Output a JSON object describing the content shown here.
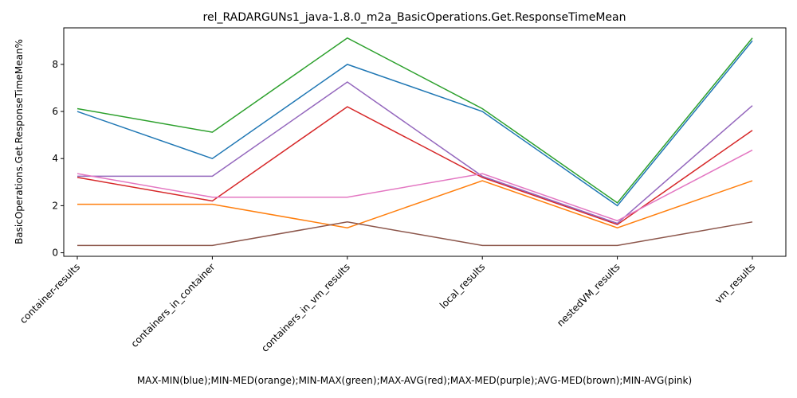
{
  "chart_data": {
    "type": "line",
    "title": "rel_RADARGUNs1_java-1.8.0_m2a_BasicOperations.Get.ResponseTimeMean",
    "xlabel": "MAX-MIN(blue);MIN-MED(orange);MIN-MAX(green);MAX-AVG(red);MAX-MED(purple);AVG-MED(brown);MIN-AVG(pink)",
    "ylabel": "BasicOperations.Get.ResponseTimeMean%",
    "categories": [
      "container-results",
      "containers_in_container",
      "containers_in_vm_results",
      "local_results",
      "nestedVM_results",
      "vm_results"
    ],
    "ylim": [
      -0.15,
      9.55
    ],
    "yticks": [
      0,
      2,
      4,
      6,
      8
    ],
    "grid": false,
    "series": [
      {
        "color": "#1f77b4",
        "values": [
          6.0,
          4.0,
          8.0,
          6.0,
          2.0,
          9.0
        ]
      },
      {
        "color": "#ff7f0e",
        "values": [
          2.06,
          2.06,
          1.06,
          3.06,
          1.06,
          3.06
        ]
      },
      {
        "color": "#2ca02c",
        "values": [
          6.12,
          5.12,
          9.12,
          6.12,
          2.12,
          9.12
        ]
      },
      {
        "color": "#d62728",
        "values": [
          3.2,
          2.2,
          6.2,
          3.2,
          1.2,
          5.2
        ]
      },
      {
        "color": "#9467bd",
        "values": [
          3.25,
          3.25,
          7.25,
          3.25,
          1.25,
          6.25
        ]
      },
      {
        "color": "#8c564b",
        "values": [
          0.31,
          0.31,
          1.31,
          0.31,
          0.31,
          1.31
        ]
      },
      {
        "color": "#e377c2",
        "values": [
          3.36,
          2.36,
          2.36,
          3.36,
          1.36,
          4.36
        ]
      }
    ]
  }
}
